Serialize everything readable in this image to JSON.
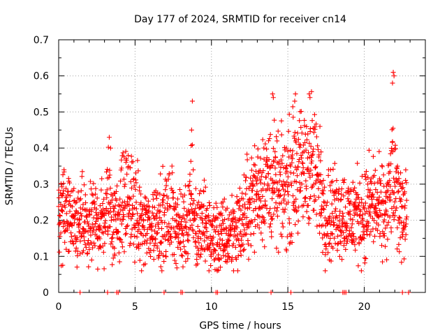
{
  "chart_data": {
    "type": "scatter",
    "title": "Day 177 of 2024, SRMTID for receiver cn14",
    "xlabel": "GPS time / hours",
    "ylabel": "SRMTID / TECUs",
    "xlim": [
      0,
      24
    ],
    "ylim": [
      0,
      0.7
    ],
    "x_ticks": [
      "0",
      "5",
      "10",
      "15",
      "20"
    ],
    "x_tick_values": [
      0,
      5,
      10,
      15,
      20
    ],
    "y_ticks": [
      "0",
      "0.1",
      "0.2",
      "0.3",
      "0.4",
      "0.5",
      "0.6",
      "0.7"
    ],
    "y_tick_values": [
      0,
      0.1,
      0.2,
      0.3,
      0.4,
      0.5,
      0.6,
      0.7
    ],
    "grid": true,
    "marker": "+",
    "color": "#ff0000",
    "series": [
      {
        "name": "SRMTID",
        "trend": [
          [
            0.0,
            0.19
          ],
          [
            0.3,
            0.24
          ],
          [
            0.6,
            0.22
          ],
          [
            1.0,
            0.17
          ],
          [
            1.5,
            0.19
          ],
          [
            2.0,
            0.17
          ],
          [
            2.5,
            0.2
          ],
          [
            3.0,
            0.19
          ],
          [
            3.3,
            0.28
          ],
          [
            3.6,
            0.18
          ],
          [
            4.0,
            0.23
          ],
          [
            4.5,
            0.27
          ],
          [
            5.0,
            0.22
          ],
          [
            5.5,
            0.18
          ],
          [
            6.0,
            0.18
          ],
          [
            6.5,
            0.21
          ],
          [
            7.0,
            0.2
          ],
          [
            7.5,
            0.22
          ],
          [
            8.0,
            0.16
          ],
          [
            8.5,
            0.22
          ],
          [
            8.7,
            0.3
          ],
          [
            9.0,
            0.16
          ],
          [
            9.5,
            0.19
          ],
          [
            10.0,
            0.15
          ],
          [
            10.5,
            0.15
          ],
          [
            11.0,
            0.15
          ],
          [
            11.5,
            0.18
          ],
          [
            12.0,
            0.19
          ],
          [
            12.5,
            0.25
          ],
          [
            13.0,
            0.28
          ],
          [
            13.5,
            0.31
          ],
          [
            14.0,
            0.3
          ],
          [
            14.5,
            0.27
          ],
          [
            15.0,
            0.3
          ],
          [
            15.5,
            0.34
          ],
          [
            16.0,
            0.33
          ],
          [
            16.5,
            0.37
          ],
          [
            17.0,
            0.3
          ],
          [
            17.5,
            0.22
          ],
          [
            18.0,
            0.22
          ],
          [
            18.5,
            0.23
          ],
          [
            19.0,
            0.2
          ],
          [
            19.5,
            0.22
          ],
          [
            20.0,
            0.21
          ],
          [
            20.5,
            0.25
          ],
          [
            21.0,
            0.22
          ],
          [
            21.5,
            0.22
          ],
          [
            21.8,
            0.32
          ],
          [
            22.2,
            0.24
          ],
          [
            22.7,
            0.24
          ]
        ],
        "spikes": [
          [
            8.75,
            0.53
          ],
          [
            8.7,
            0.45
          ],
          [
            14.0,
            0.55
          ],
          [
            14.05,
            0.54
          ],
          [
            15.5,
            0.55
          ],
          [
            15.45,
            0.53
          ],
          [
            16.4,
            0.55
          ],
          [
            16.45,
            0.54
          ],
          [
            21.9,
            0.61
          ],
          [
            21.95,
            0.6
          ],
          [
            21.85,
            0.58
          ],
          [
            3.4,
            0.4
          ],
          [
            0.35,
            0.34
          ],
          [
            17.1,
            0.46
          ],
          [
            14.9,
            0.4
          ]
        ],
        "zero_points": [
          1.4,
          3.2,
          3.8,
          3.9,
          6.9,
          8.0,
          8.1,
          10.3,
          10.4,
          13.9,
          15.2,
          18.6,
          18.7,
          18.8,
          22.5,
          22.9
        ]
      }
    ]
  }
}
